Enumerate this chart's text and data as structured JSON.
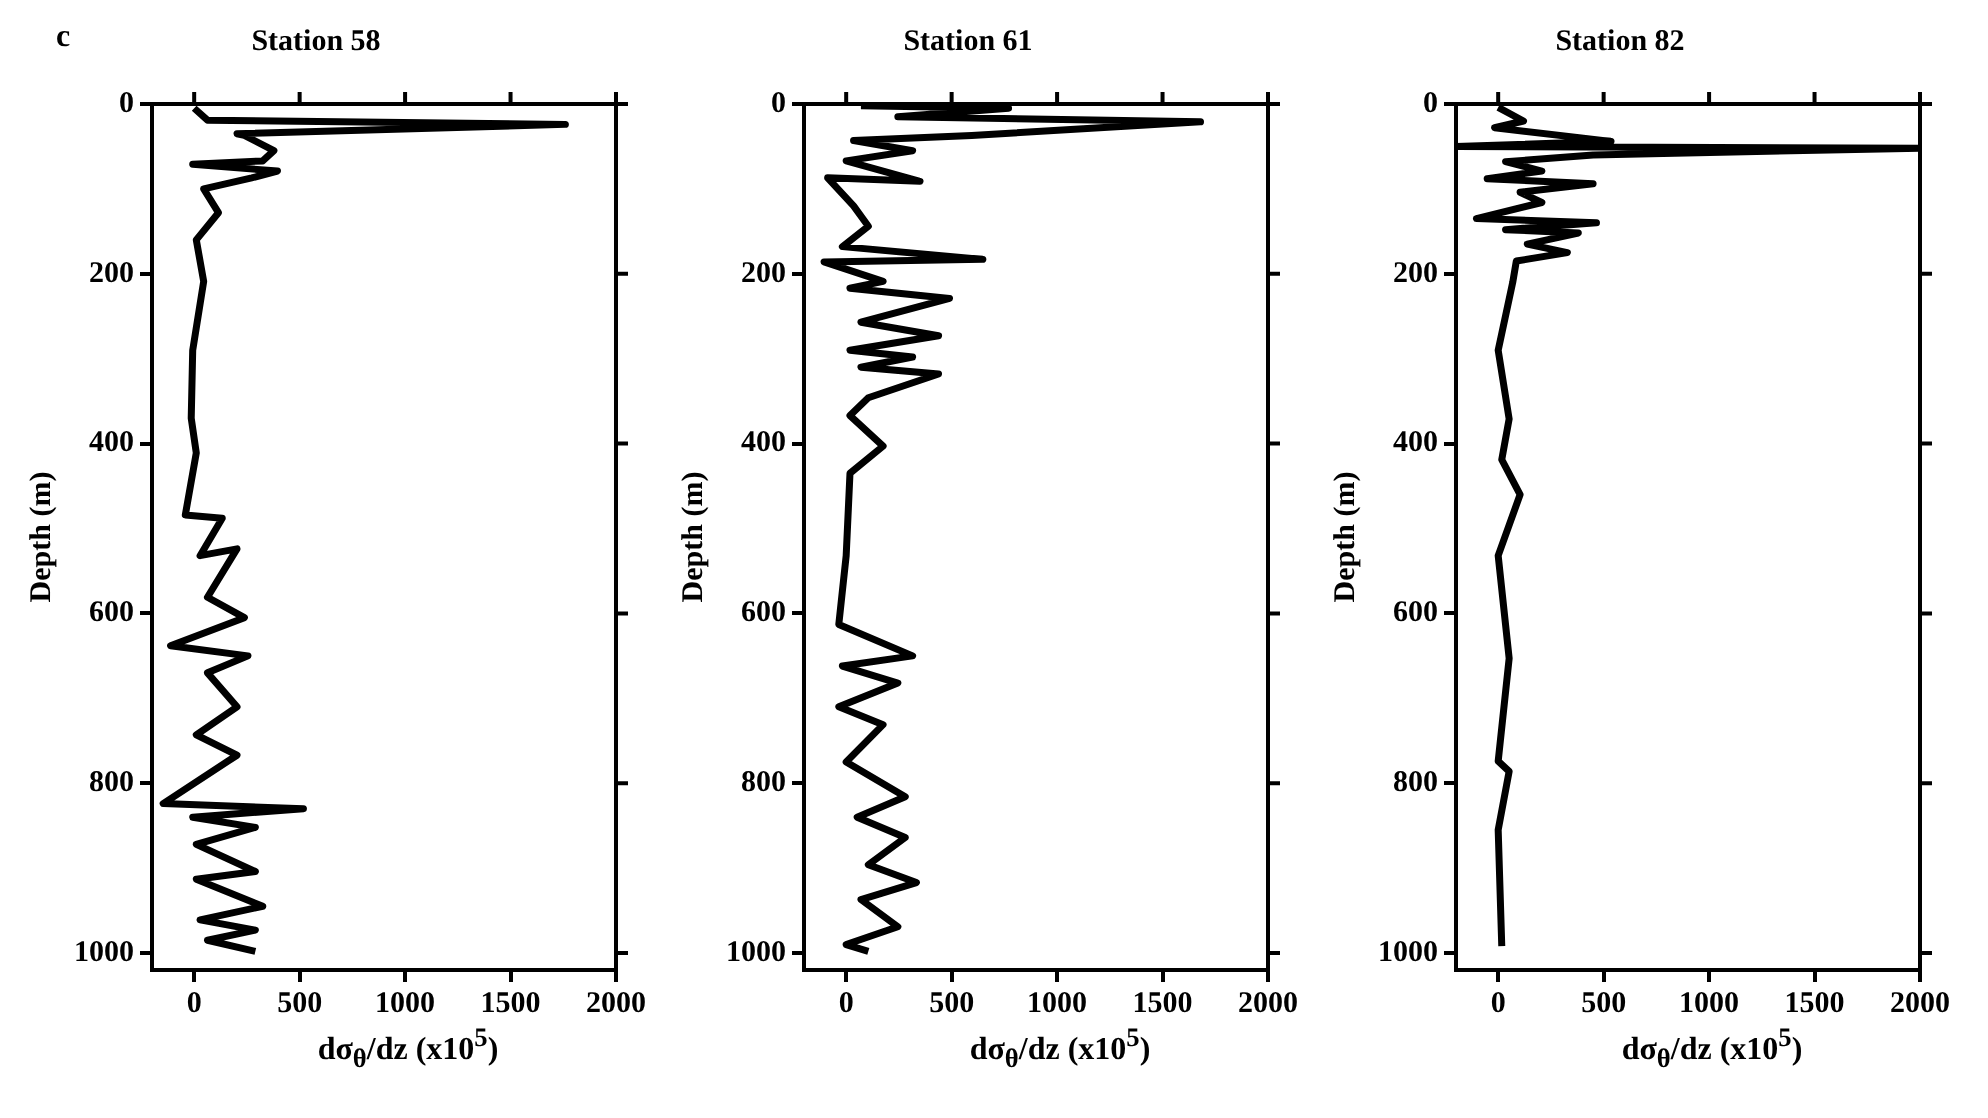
{
  "chart_data": [
    {
      "type": "line",
      "title": "Station 58",
      "xlabel": "dσ$_{θ}$/dz (x10$^{5}$)",
      "ylabel": "Depth (m)",
      "annotations": [
        "c"
      ],
      "xlim": [
        -200,
        2000
      ],
      "xticks": [
        0,
        500,
        1000,
        1500,
        2000
      ],
      "ylim": [
        1020,
        0
      ],
      "yticks": [
        0,
        200,
        400,
        600,
        800,
        1000
      ],
      "grid": false,
      "legend": false,
      "series": [
        {
          "color": "#000000",
          "x": [
            0,
            63,
            1760,
            203,
            238,
            378,
            325,
            -7,
            395,
            273,
            45,
            115,
            10,
            45,
            -7,
            -14,
            10,
            -42,
            133,
            28,
            203,
            63,
            238,
            -112,
            255,
            63,
            203,
            10,
            203,
            -147,
            518,
            -7,
            290,
            10,
            290,
            10,
            325,
            28,
            290,
            63,
            290
          ],
          "values": [
            5,
            19,
            24,
            35,
            37,
            55,
            67,
            71,
            79,
            87,
            100,
            128,
            160,
            209,
            290,
            370,
            411,
            484,
            488,
            532,
            524,
            581,
            605,
            638,
            650,
            670,
            710,
            743,
            767,
            824,
            830,
            840,
            852,
            872,
            904,
            913,
            945,
            961,
            973,
            985,
            998
          ]
        }
      ]
    },
    {
      "type": "line",
      "title": "Station 61",
      "xlabel": "dσ$_{θ}$/dz (x10$^{5}$)",
      "ylabel": "Depth (m)",
      "xlim": [
        -200,
        2000
      ],
      "xticks": [
        0,
        500,
        1000,
        1500,
        2000
      ],
      "ylim": [
        1020,
        0
      ],
      "yticks": [
        0,
        200,
        400,
        600,
        800,
        1000
      ],
      "grid": false,
      "legend": false,
      "series": [
        {
          "color": "#000000",
          "x": [
            70,
            770,
            245,
            1680,
            595,
            35,
            315,
            0,
            350,
            -88,
            35,
            105,
            -18,
            648,
            -105,
            175,
            18,
            490,
            70,
            438,
            18,
            315,
            70,
            438,
            105,
            18,
            175,
            18,
            0,
            -35,
            315,
            -18,
            245,
            -35,
            175,
            0,
            280,
            52,
            280,
            105,
            333,
            70,
            245,
            0,
            105
          ],
          "values": [
            2,
            5,
            15,
            21,
            37,
            43,
            55,
            67,
            91,
            87,
            120,
            144,
            168,
            183,
            186,
            209,
            217,
            229,
            257,
            273,
            290,
            298,
            310,
            318,
            346,
            367,
            403,
            435,
            532,
            613,
            650,
            662,
            682,
            710,
            731,
            775,
            816,
            840,
            864,
            896,
            917,
            937,
            969,
            990,
            998
          ]
        }
      ]
    },
    {
      "type": "line",
      "title": "Station 82",
      "xlabel": "dσ$_{θ}$/dz (x10$^{5}$)",
      "ylabel": "Depth (m)",
      "xlim": [
        -200,
        2000
      ],
      "xticks": [
        0,
        500,
        1000,
        1500,
        2000
      ],
      "ylim": [
        1020,
        0
      ],
      "yticks": [
        0,
        200,
        400,
        600,
        800,
        1000
      ],
      "grid": false,
      "legend": false,
      "series": [
        {
          "color": "#000000",
          "x": [
            0,
            120,
            -17,
            535,
            -200,
            2000,
            450,
            35,
            207,
            -52,
            450,
            104,
            207,
            -103,
            466,
            35,
            380,
            138,
            328,
            86,
            69,
            0,
            52,
            17,
            104,
            0,
            52,
            0,
            52,
            0,
            17
          ],
          "values": [
            4,
            20,
            28,
            44,
            50,
            52,
            60,
            68,
            79,
            88,
            94,
            104,
            116,
            135,
            140,
            148,
            152,
            165,
            175,
            185,
            210,
            290,
            371,
            419,
            460,
            532,
            653,
            774,
            786,
            855,
            992
          ]
        }
      ]
    }
  ]
}
